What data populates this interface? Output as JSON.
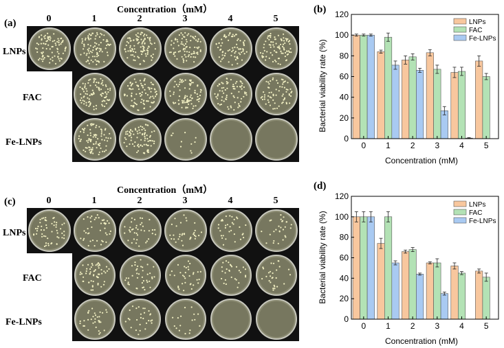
{
  "photo_panels": [
    {
      "label": "(a)",
      "title": "Concentration（mM）",
      "columns": [
        "0",
        "1",
        "2",
        "3",
        "4",
        "5"
      ],
      "rows": [
        "LNPs",
        "FAC",
        "Fe-LNPs"
      ],
      "colony_density": [
        [
          0.8,
          0.8,
          0.9,
          0.75,
          0.7,
          0.8
        ],
        [
          null,
          0.85,
          0.8,
          0.75,
          0.65,
          0.6
        ],
        [
          null,
          0.8,
          0.75,
          0.1,
          0.0,
          0.0
        ]
      ]
    },
    {
      "label": "(c)",
      "title": "Concentration（mM）",
      "columns": [
        "0",
        "1",
        "2",
        "3",
        "4",
        "5"
      ],
      "rows": [
        "LNPs",
        "FAC",
        "Fe-LNPs"
      ],
      "colony_density": [
        [
          0.5,
          0.4,
          0.35,
          0.3,
          0.3,
          0.25
        ],
        [
          null,
          0.5,
          0.35,
          0.3,
          0.25,
          0.25
        ],
        [
          null,
          0.3,
          0.25,
          0.15,
          0.0,
          0.0
        ]
      ]
    }
  ],
  "chart_data": [
    {
      "label": "(b)",
      "type": "bar",
      "xlabel": "Concentration (mM)",
      "ylabel": "Bacterial viability rate (%)",
      "ylim": [
        0,
        120
      ],
      "yticks": [
        "0",
        "20",
        "40",
        "60",
        "80",
        "100",
        "120"
      ],
      "categories": [
        "0",
        "1",
        "2",
        "3",
        "4",
        "5"
      ],
      "legend_position": "top-right",
      "series": [
        {
          "name": "LNPs",
          "color": "#F8C79E",
          "values": [
            100,
            84,
            76,
            83,
            64,
            75
          ],
          "errors": [
            1,
            1.5,
            4,
            3,
            5,
            5
          ]
        },
        {
          "name": "FAC",
          "color": "#B3E2B5",
          "values": [
            100,
            98,
            79,
            67,
            65,
            60
          ],
          "errors": [
            1,
            4,
            3,
            4,
            4,
            3
          ]
        },
        {
          "name": "Fe-LNPs",
          "color": "#A9CAF2",
          "values": [
            100,
            71,
            66,
            27,
            0.5,
            null
          ],
          "errors": [
            1,
            4,
            2,
            4,
            0.5,
            null
          ]
        }
      ]
    },
    {
      "label": "(d)",
      "type": "bar",
      "xlabel": "Concentration (mM)",
      "ylabel": "Bacterial viability rate (%)",
      "ylim": [
        0,
        120
      ],
      "yticks": [
        "0",
        "20",
        "40",
        "60",
        "80",
        "100",
        "120"
      ],
      "categories": [
        "0",
        "1",
        "2",
        "3",
        "4",
        "5"
      ],
      "legend_position": "top-right",
      "series": [
        {
          "name": "LNPs",
          "color": "#F8C79E",
          "values": [
            100,
            74,
            66,
            55,
            52,
            47
          ],
          "errors": [
            5,
            5,
            1.5,
            1,
            3,
            2
          ]
        },
        {
          "name": "FAC",
          "color": "#B3E2B5",
          "values": [
            100,
            100,
            68,
            55,
            45,
            41
          ],
          "errors": [
            5,
            5,
            2,
            4,
            1.5,
            4
          ]
        },
        {
          "name": "Fe-LNPs",
          "color": "#A9CAF2",
          "values": [
            100,
            55,
            44,
            25,
            null,
            null
          ],
          "errors": [
            5,
            2,
            1,
            1.5,
            null,
            null
          ]
        }
      ]
    }
  ]
}
